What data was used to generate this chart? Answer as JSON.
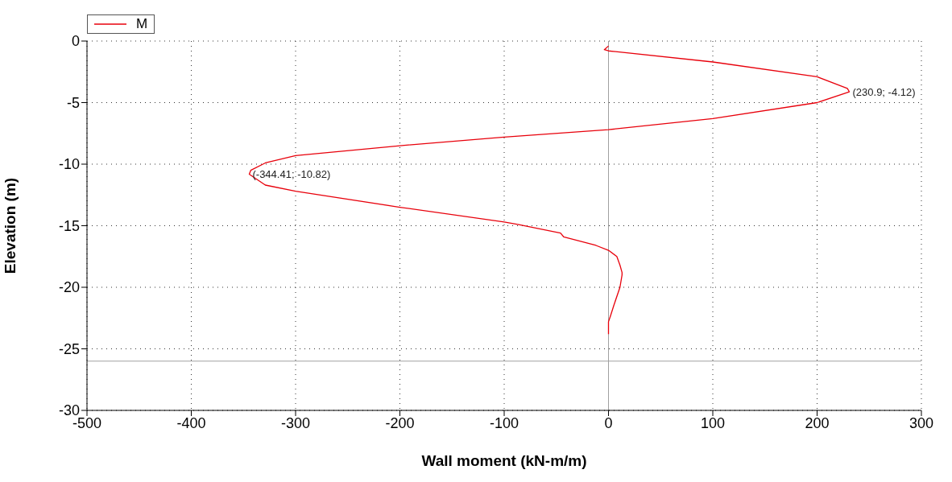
{
  "chart_data": {
    "type": "line",
    "xlabel": "Wall moment (kN-m/m)",
    "ylabel": "Elevation (m)",
    "xlim": [
      -500,
      300
    ],
    "xticks": [
      -500,
      -400,
      -300,
      -200,
      -100,
      0,
      100,
      200,
      300
    ],
    "ylim": [
      -30,
      0
    ],
    "yticks": [
      -30,
      -25,
      -20,
      -15,
      -10,
      -5,
      0
    ],
    "grid": true,
    "legend": "top left",
    "marker": "none",
    "line_style": "solid",
    "series": [
      {
        "name": "M",
        "color": "#e8000b",
        "x": [
          0,
          -4,
          0,
          100,
          200,
          229,
          230.9,
          200,
          100,
          0,
          -100,
          -200,
          -300,
          -329,
          -343,
          -344.41,
          -329,
          -300,
          -200,
          -100,
          -87,
          -46,
          -43,
          -12,
          0,
          8,
          11,
          13,
          13,
          11,
          5,
          2,
          0,
          0
        ],
        "values": [
          -0.4,
          -0.7,
          -0.8,
          -1.7,
          -2.9,
          -3.85,
          -4.12,
          -5.0,
          -6.3,
          -7.2,
          -7.8,
          -8.5,
          -9.3,
          -9.9,
          -10.5,
          -10.82,
          -11.7,
          -12.2,
          -13.5,
          -14.7,
          -14.9,
          -15.6,
          -15.9,
          -16.6,
          -17.0,
          -17.5,
          -18.2,
          -18.8,
          -19.0,
          -20.0,
          -21.5,
          -22.3,
          -22.8,
          -23.8
        ]
      }
    ],
    "annotations": [
      {
        "text": "(230.9; -4.12)",
        "x": 230.9,
        "y": -4.12
      },
      {
        "text": "(-344.41; -10.82)",
        "x": -344.41,
        "y": -10.82
      }
    ],
    "ref_lines": [
      {
        "axis": "x",
        "value": 0,
        "color": "#a0a0a0",
        "line_style": "solid"
      },
      {
        "axis": "y",
        "value": -26,
        "color": "#a0a0a0",
        "line_style": "solid"
      }
    ]
  }
}
